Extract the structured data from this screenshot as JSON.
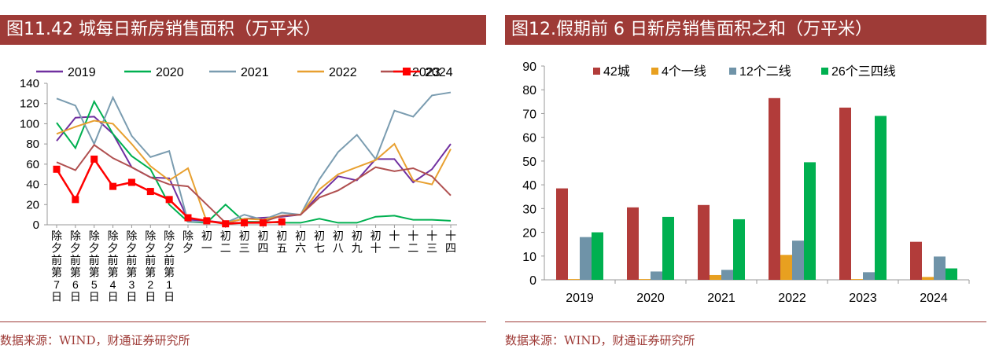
{
  "left": {
    "title": "图11.42 城每日新房销售面积（万平米）",
    "source": "数据来源：WIND，财通证券研究所"
  },
  "right": {
    "title": "图12.假期前 6 日新房销售面积之和（万平米）",
    "source": "数据来源：WIND，财通证券研究所"
  },
  "chart_data": [
    {
      "type": "line",
      "title": "图11.42 城每日新房销售面积（万平米）",
      "ylim": [
        0,
        140
      ],
      "yticks": [
        0,
        20,
        40,
        60,
        80,
        100,
        120,
        140
      ],
      "categories": [
        "除夕前第7日",
        "除夕前第6日",
        "除夕前第5日",
        "除夕前第4日",
        "除夕前第3日",
        "除夕前第2日",
        "除夕前第1日",
        "除夕",
        "初一",
        "初二",
        "初三",
        "初四",
        "初五",
        "初六",
        "初七",
        "初八",
        "初九",
        "初十",
        "十一",
        "十二",
        "十三",
        "十四"
      ],
      "series": [
        {
          "name": "2019",
          "color": "#7030a0",
          "values": [
            83,
            106,
            107,
            90,
            57,
            47,
            46,
            5,
            4,
            2,
            6,
            7,
            8,
            10,
            30,
            48,
            44,
            65,
            65,
            42,
            55,
            80
          ]
        },
        {
          "name": "2020",
          "color": "#00b050",
          "values": [
            101,
            76,
            122,
            90,
            68,
            55,
            20,
            3,
            2,
            20,
            3,
            3,
            2,
            2,
            6,
            2,
            2,
            8,
            9,
            5,
            5,
            4
          ]
        },
        {
          "name": "2021",
          "color": "#7a9cb0",
          "values": [
            125,
            118,
            80,
            126,
            88,
            67,
            73,
            3,
            3,
            2,
            10,
            5,
            12,
            10,
            45,
            72,
            89,
            65,
            113,
            107,
            128,
            131
          ]
        },
        {
          "name": "2022",
          "color": "#e8a030",
          "values": [
            90,
            97,
            103,
            100,
            80,
            58,
            44,
            56,
            3,
            2,
            6,
            5,
            9,
            10,
            35,
            50,
            57,
            64,
            80,
            44,
            40,
            75
          ]
        },
        {
          "name": "2023",
          "color": "#b05050",
          "values": [
            62,
            54,
            79,
            66,
            57,
            47,
            40,
            38,
            20,
            2,
            2,
            3,
            9,
            10,
            27,
            34,
            45,
            57,
            53,
            56,
            48,
            29
          ]
        },
        {
          "name": "2024",
          "color": "#ff0000",
          "values": [
            55,
            25,
            65,
            38,
            42,
            33,
            25,
            7,
            4,
            1,
            2,
            2,
            3,
            null,
            null,
            null,
            null,
            null,
            null,
            null,
            null,
            null
          ]
        }
      ]
    },
    {
      "type": "bar",
      "title": "图12.假期前 6 日新房销售面积之和（万平米）",
      "ylim": [
        0,
        90
      ],
      "yticks": [
        0,
        10,
        20,
        30,
        40,
        50,
        60,
        70,
        80,
        90
      ],
      "categories": [
        "2019",
        "2020",
        "2021",
        "2022",
        "2023",
        "2024"
      ],
      "series": [
        {
          "name": "42城",
          "color": "#b23c3a",
          "values": [
            38.5,
            30.5,
            31.5,
            76.5,
            72.5,
            16
          ]
        },
        {
          "name": "4个一线",
          "color": "#e8a020",
          "values": [
            0.3,
            0.3,
            2,
            10.5,
            0.3,
            1.2
          ]
        },
        {
          "name": "12个二线",
          "color": "#6f93a8",
          "values": [
            18,
            3.5,
            4.2,
            16.5,
            3.2,
            9.8
          ]
        },
        {
          "name": "26个三四线",
          "color": "#00b050",
          "values": [
            20,
            26.5,
            25.5,
            49.5,
            69,
            4.8
          ]
        }
      ]
    }
  ]
}
